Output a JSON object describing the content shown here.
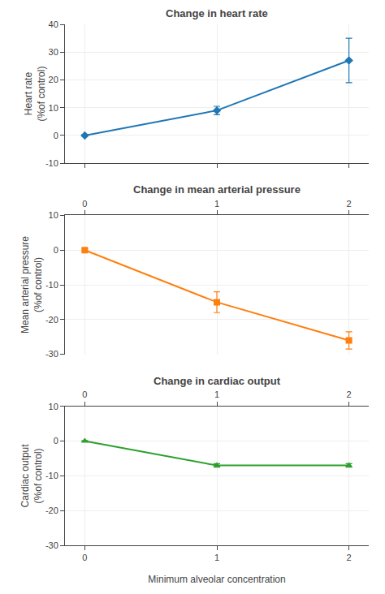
{
  "chart_data": [
    {
      "type": "line",
      "title": "Change in heart rate",
      "ylabel": "Heart rate\n(%of control)",
      "x": [
        0,
        1,
        2
      ],
      "values": [
        0,
        9,
        27
      ],
      "errors": [
        0.3,
        1.5,
        8
      ],
      "marker": "diamond",
      "xlim": [
        -0.15,
        2.15
      ],
      "xticks": [
        0,
        1,
        2
      ],
      "ylim": [
        -10,
        40
      ],
      "yticks": [
        -10,
        0,
        10,
        20,
        30,
        40
      ],
      "tick_labels": "y"
    },
    {
      "type": "line",
      "title": "Change in mean arterial pressure",
      "ylabel": "Mean arterial pressure\n(%of control)",
      "x": [
        0,
        1,
        2
      ],
      "values": [
        0,
        -15,
        -26
      ],
      "errors": [
        0.3,
        3,
        2.5
      ],
      "marker": "square",
      "xlim": [
        -0.15,
        2.15
      ],
      "xticks": [
        0,
        1,
        2
      ],
      "ylim": [
        -30,
        10
      ],
      "yticks": [
        -30,
        -20,
        -10,
        0,
        10
      ]
    },
    {
      "type": "line",
      "title": "Change in cardiac output",
      "ylabel": "Cardiac output\n(%of control)",
      "xlabel": "Minimum alveolar concentration",
      "x": [
        0,
        1,
        2
      ],
      "values": [
        0,
        -7,
        -7
      ],
      "errors": [
        0.2,
        0.5,
        0.5
      ],
      "marker": "triangle-up",
      "xlim": [
        -0.15,
        2.15
      ],
      "xticks": [
        0,
        1,
        2
      ],
      "ylim": [
        -30,
        10
      ],
      "yticks": [
        -30,
        -20,
        -10,
        0,
        10
      ]
    }
  ]
}
